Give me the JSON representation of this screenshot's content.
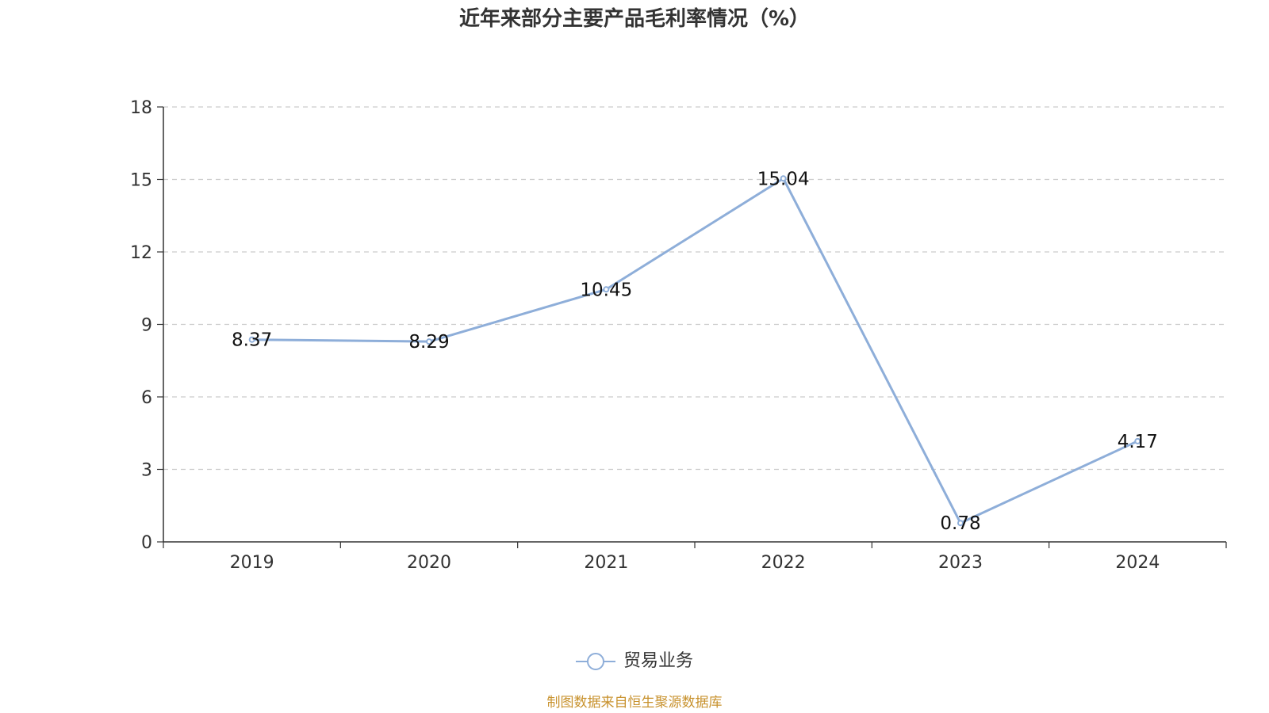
{
  "chart_data": {
    "type": "line",
    "title": "近年来部分主要产品毛利率情况（%）",
    "categories": [
      "2019",
      "2020",
      "2021",
      "2022",
      "2023",
      "2024"
    ],
    "series": [
      {
        "name": "贸易业务",
        "values": [
          8.37,
          8.29,
          10.45,
          15.04,
          0.78,
          4.17
        ],
        "labels": [
          "8.37",
          "8.29",
          "10.45",
          "15.04",
          "0.78",
          "4.17"
        ],
        "color": "#8eaed9"
      }
    ],
    "y_ticks": [
      "0",
      "3",
      "6",
      "9",
      "12",
      "15",
      "18"
    ],
    "ylim": [
      0,
      18
    ],
    "grid": true,
    "legend_position": "bottom"
  },
  "source_note": "制图数据来自恒生聚源数据库"
}
